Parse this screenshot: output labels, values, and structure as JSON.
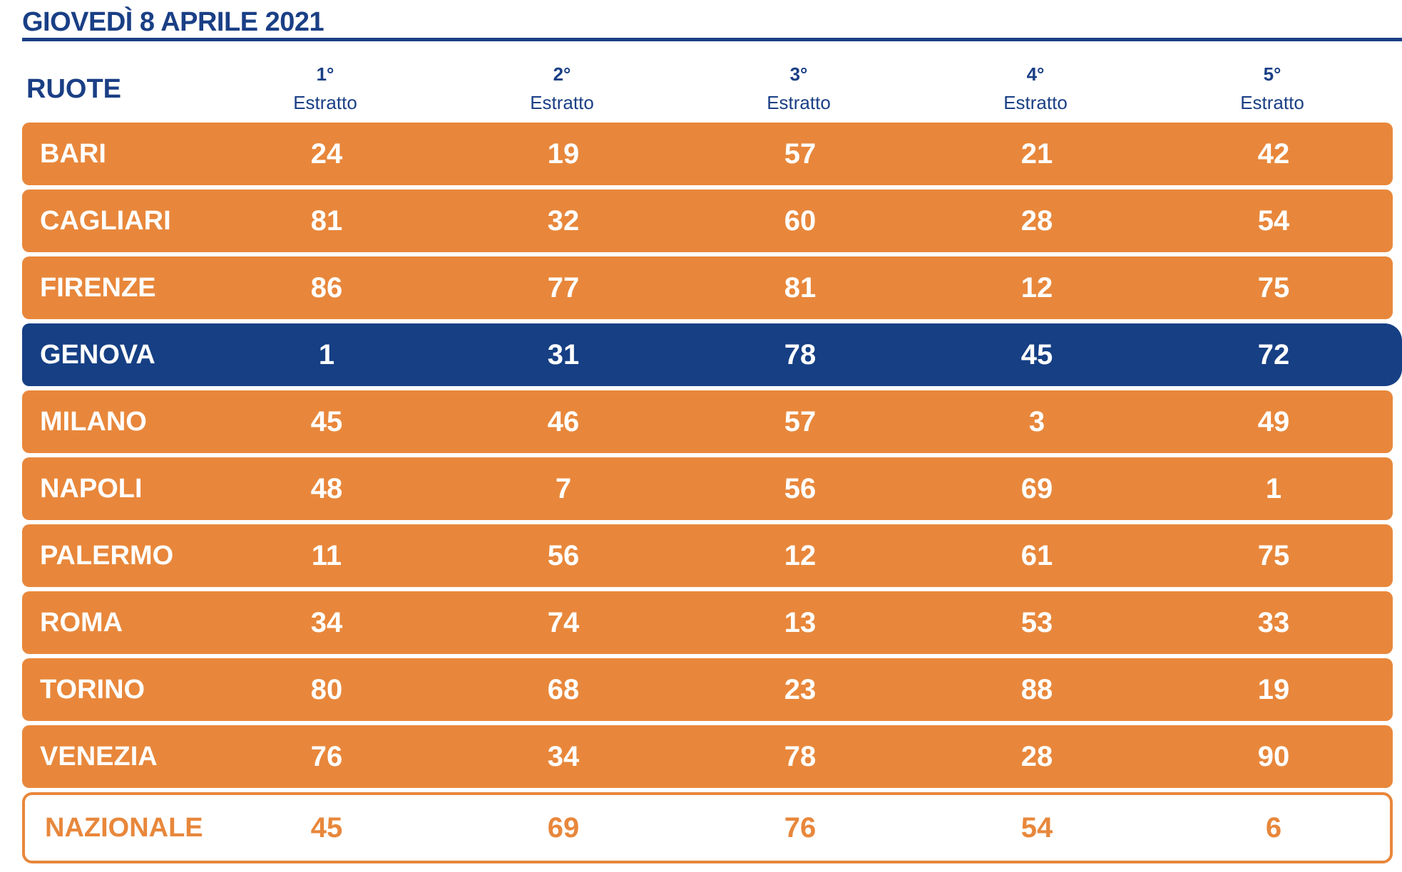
{
  "header": {
    "date": "GIOVEDÌ 8 APRILE 2021"
  },
  "table": {
    "ruote_label": "RUOTE",
    "columns": [
      {
        "ordinal": "1°",
        "label": "Estratto"
      },
      {
        "ordinal": "2°",
        "label": "Estratto"
      },
      {
        "ordinal": "3°",
        "label": "Estratto"
      },
      {
        "ordinal": "4°",
        "label": "Estratto"
      },
      {
        "ordinal": "5°",
        "label": "Estratto"
      }
    ],
    "rows": [
      {
        "ruota": "BARI",
        "numbers": [
          "24",
          "19",
          "57",
          "21",
          "42"
        ]
      },
      {
        "ruota": "CAGLIARI",
        "numbers": [
          "81",
          "32",
          "60",
          "28",
          "54"
        ]
      },
      {
        "ruota": "FIRENZE",
        "numbers": [
          "86",
          "77",
          "81",
          "12",
          "75"
        ]
      },
      {
        "ruota": "GENOVA",
        "numbers": [
          "1",
          "31",
          "78",
          "45",
          "72"
        ]
      },
      {
        "ruota": "MILANO",
        "numbers": [
          "45",
          "46",
          "57",
          "3",
          "49"
        ]
      },
      {
        "ruota": "NAPOLI",
        "numbers": [
          "48",
          "7",
          "56",
          "69",
          "1"
        ]
      },
      {
        "ruota": "PALERMO",
        "numbers": [
          "11",
          "56",
          "12",
          "61",
          "75"
        ]
      },
      {
        "ruota": "ROMA",
        "numbers": [
          "34",
          "74",
          "13",
          "53",
          "33"
        ]
      },
      {
        "ruota": "TORINO",
        "numbers": [
          "80",
          "68",
          "23",
          "88",
          "19"
        ]
      },
      {
        "ruota": "VENEZIA",
        "numbers": [
          "76",
          "34",
          "78",
          "28",
          "90"
        ]
      },
      {
        "ruota": "NAZIONALE",
        "numbers": [
          "45",
          "69",
          "76",
          "54",
          "6"
        ]
      }
    ]
  },
  "colors": {
    "brand_blue": "#1a3f85",
    "row_orange": "#e8873b",
    "highlight_blue": "#163f84",
    "text_white": "#ffffff"
  }
}
